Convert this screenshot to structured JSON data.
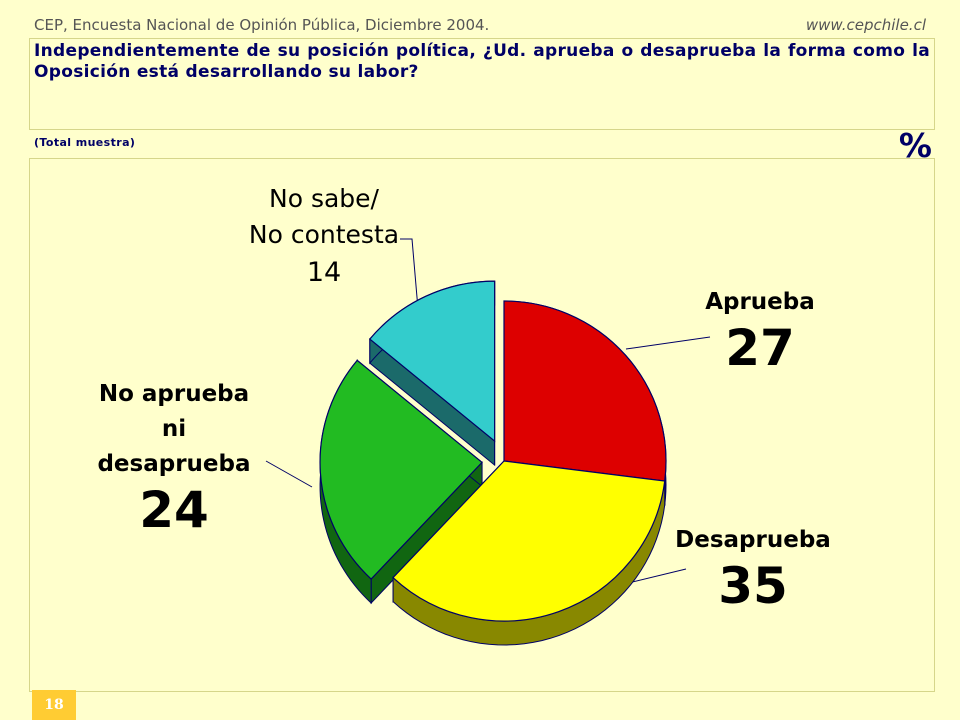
{
  "header": {
    "source": "CEP, Encuesta Nacional de Opinión Pública, Diciembre 2004.",
    "url": "www.cepchile.cl"
  },
  "question": "Independientemente de su posición política, ¿Ud. aprueba o desaprueba la forma como la Oposición está desarrollando su labor?",
  "sample_note": "(Total muestra)",
  "unit": "%",
  "page_number": "18",
  "labels": {
    "aprueba": "Aprueba",
    "desaprueba": "Desaprueba",
    "ni_line1": "No aprueba",
    "ni_line2": "ni",
    "ni_line3": "desaprueba",
    "ns_line1": "No sabe/",
    "ns_line2": "No contesta"
  },
  "values_text": {
    "aprueba": "27",
    "desaprueba": "35",
    "ni": "24",
    "ns": "14"
  },
  "chart_data": {
    "type": "pie",
    "style": "3d-exploded",
    "categories": [
      "Aprueba",
      "Desaprueba",
      "No aprueba ni desaprueba",
      "No sabe/ No contesta"
    ],
    "values": [
      27,
      35,
      24,
      14
    ],
    "colors": [
      "#dd0000",
      "#ffff00",
      "#22bb22",
      "#33cccc"
    ],
    "side_colors": [
      "#770000",
      "#888800",
      "#116611",
      "#1b6a6a"
    ],
    "exploded": [
      false,
      false,
      true,
      true
    ]
  }
}
